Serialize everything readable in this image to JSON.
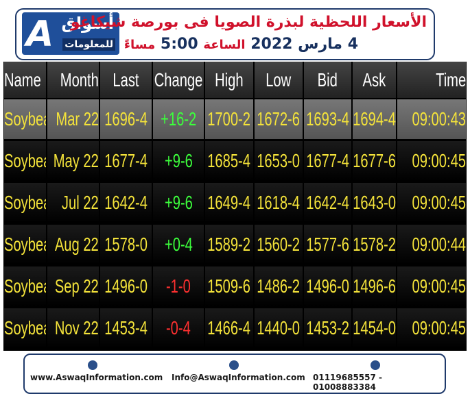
{
  "header": {
    "logo_main": "أسواق",
    "logo_sub": "للمعلومات",
    "title": "الأسعار اللحظية لبذرة الصويا فى بورصة شيكاغو",
    "date": "4 مارس 2022",
    "time_word": "الساعة",
    "time": "5:00",
    "period": "مساءً"
  },
  "table": {
    "columns": [
      "Name",
      "Month",
      "Last",
      "Change",
      "High",
      "Low",
      "Bid",
      "Ask",
      "Time"
    ],
    "rows": [
      [
        "Soybean",
        "Mar 22",
        "1696-4",
        "+16-2",
        "1700-2",
        "1672-6",
        "1693-4",
        "1694-4",
        "09:00:43"
      ],
      [
        "Soybean",
        "May 22",
        "1677-4",
        "+9-6",
        "1685-4",
        "1653-0",
        "1677-4",
        "1677-6",
        "09:00:45"
      ],
      [
        "Soybean",
        "Jul 22",
        "1642-4",
        "+9-6",
        "1649-4",
        "1618-4",
        "1642-4",
        "1643-0",
        "09:00:45"
      ],
      [
        "Soybean",
        "Aug 22",
        "1578-0",
        "+0-4",
        "1589-2",
        "1560-2",
        "1577-6",
        "1578-2",
        "09:00:44"
      ],
      [
        "Soybean",
        "Sep 22",
        "1496-0",
        "-1-0",
        "1509-6",
        "1486-2",
        "1496-0",
        "1496-6",
        "09:00:45"
      ],
      [
        "Soybean",
        "Nov 22",
        "1453-4",
        "-0-4",
        "1466-4",
        "1440-0",
        "1453-2",
        "1454-0",
        "09:00:45"
      ]
    ]
  },
  "footer": {
    "website": "www.AswaqInformation.com",
    "email": "Info@AswaqInformation.com",
    "phone": "01119685557 - 01008883384"
  }
}
